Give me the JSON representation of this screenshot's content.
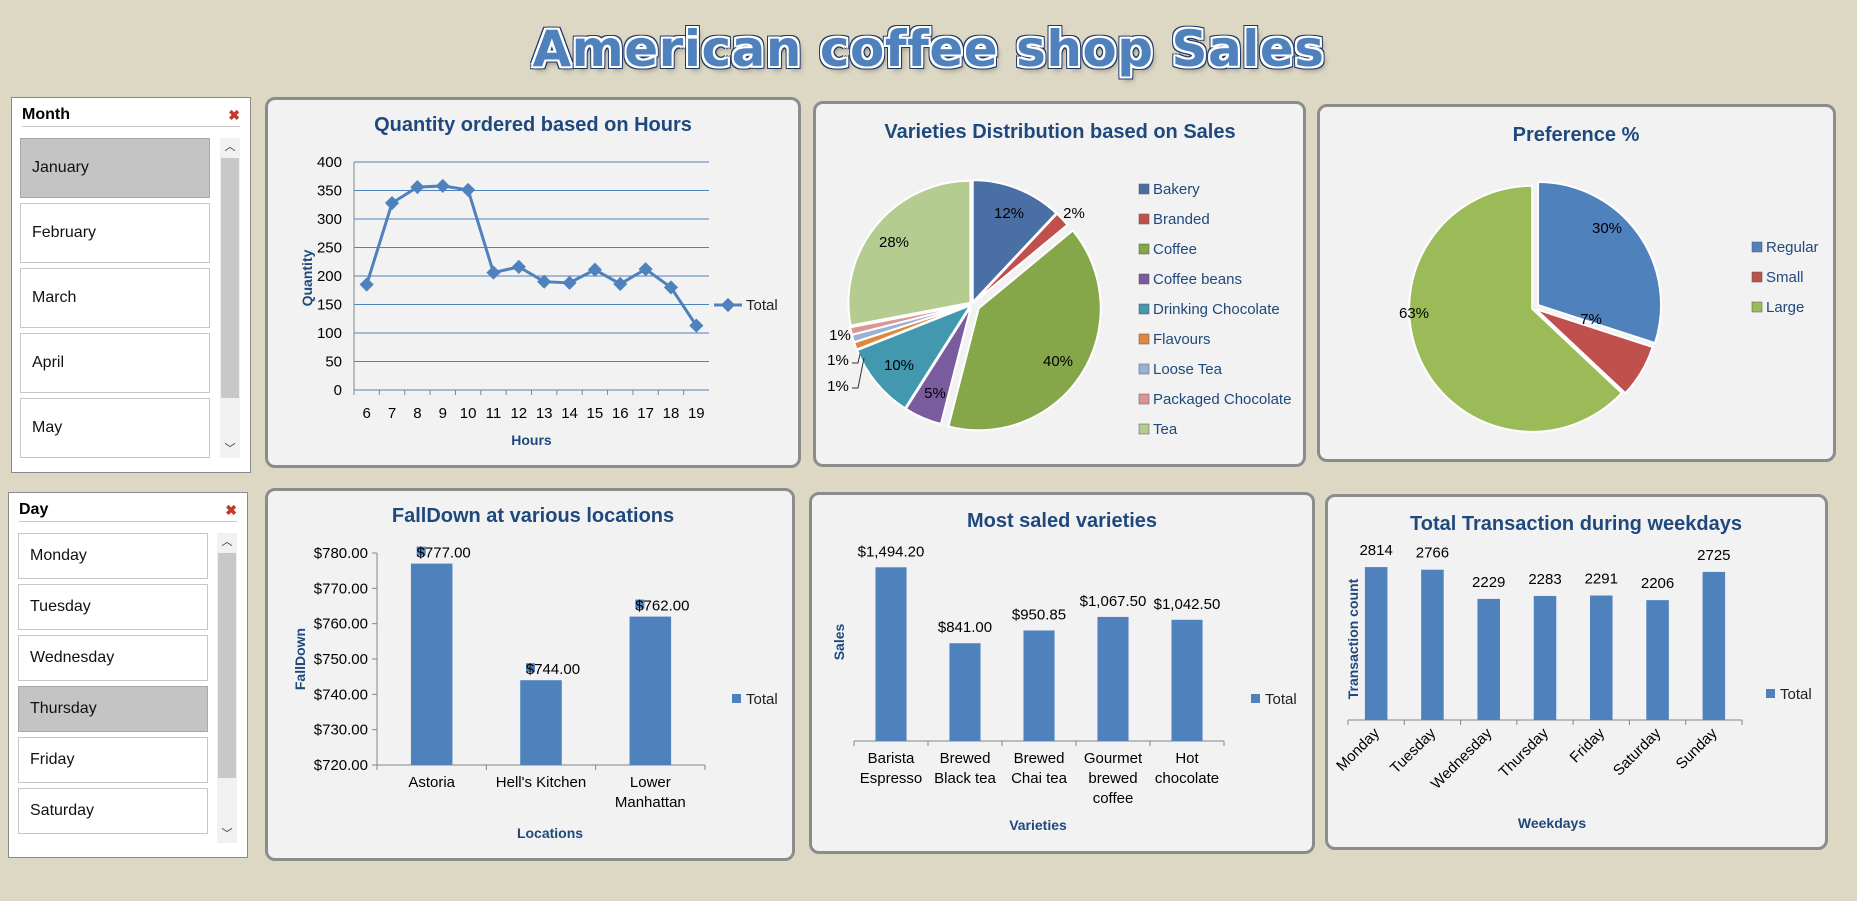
{
  "dashboard": {
    "title": "American coffee shop Sales"
  },
  "colors": {
    "accent": "#4f81bd",
    "title_text": "#1f497d",
    "panel_bg": "#f2f2f2",
    "page_bg": "#ddd8c4",
    "selected_item": "#c4c4c4"
  },
  "month_slicer": {
    "header": "Month",
    "clear_icon": "clear-filter-icon",
    "items": [
      {
        "label": "January",
        "selected": true
      },
      {
        "label": "February",
        "selected": false
      },
      {
        "label": "March",
        "selected": false
      },
      {
        "label": "April",
        "selected": false
      },
      {
        "label": "May",
        "selected": false
      }
    ]
  },
  "day_slicer": {
    "header": "Day",
    "clear_icon": "clear-filter-icon",
    "items": [
      {
        "label": "Monday",
        "selected": false
      },
      {
        "label": "Tuesday",
        "selected": false
      },
      {
        "label": "Wednesday",
        "selected": false
      },
      {
        "label": "Thursday",
        "selected": true
      },
      {
        "label": "Friday",
        "selected": false
      },
      {
        "label": "Saturday",
        "selected": false
      }
    ]
  },
  "charts": {
    "hours": {
      "title": "Quantity ordered based on Hours"
    },
    "varieties_pie": {
      "title": "Varieties Distribution based on Sales"
    },
    "preference": {
      "title": "Preference %"
    },
    "falldown": {
      "title": "FallDown at various locations"
    },
    "most_saled": {
      "title": "Most saled varieties"
    },
    "weekdays": {
      "title": "Total Transaction  during weekdays"
    }
  },
  "chart_data": [
    {
      "id": "hours",
      "type": "line",
      "title": "Quantity ordered based on Hours",
      "xlabel": "Hours",
      "ylabel": "Quantity",
      "x": [
        6,
        7,
        8,
        9,
        10,
        11,
        12,
        13,
        14,
        15,
        16,
        17,
        18,
        19
      ],
      "series": [
        {
          "name": "Total",
          "values": [
            185,
            328,
            356,
            358,
            351,
            206,
            216,
            190,
            188,
            211,
            186,
            212,
            180,
            113
          ]
        }
      ],
      "ylim": [
        0,
        400
      ],
      "yticks": [
        0,
        50,
        100,
        150,
        200,
        250,
        300,
        350,
        400
      ],
      "grid": true,
      "legend": "right"
    },
    {
      "id": "varieties_pie",
      "type": "pie",
      "title": "Varieties Distribution based on Sales",
      "categories": [
        "Bakery",
        "Branded",
        "Coffee",
        "Coffee beans",
        "Drinking Chocolate",
        "Flavours",
        "Loose Tea",
        "Packaged Chocolate",
        "Tea"
      ],
      "values": [
        12,
        2,
        40,
        5,
        10,
        1,
        1,
        1,
        28
      ],
      "labels": [
        "12%",
        "2%",
        "40%",
        "5%",
        "10%",
        "1%",
        "1%",
        "1%",
        "28%"
      ],
      "colors": [
        "#4a6fa5",
        "#c0504d",
        "#86a64a",
        "#7a5c9e",
        "#4198af",
        "#e0873c",
        "#9bb1d4",
        "#d99694",
        "#b5cc91"
      ],
      "legend": "right"
    },
    {
      "id": "preference",
      "type": "pie",
      "title": "Preference %",
      "categories": [
        "Regular",
        "Small",
        "Large"
      ],
      "values": [
        30,
        7,
        63
      ],
      "labels": [
        "30%",
        "7%",
        "63%"
      ],
      "colors": [
        "#4f81bd",
        "#c0504d",
        "#9bbb59"
      ],
      "legend": "right"
    },
    {
      "id": "falldown",
      "type": "bar",
      "title": "FallDown at various locations",
      "xlabel": "Locations",
      "ylabel": "FallDown",
      "categories": [
        [
          "Astoria"
        ],
        [
          "Hell's Kitchen"
        ],
        [
          "Lower",
          "Manhattan"
        ]
      ],
      "series": [
        {
          "name": "Total",
          "values": [
            777,
            744,
            762
          ]
        }
      ],
      "value_labels": [
        "$777.00",
        "$744.00",
        "$762.00"
      ],
      "ylim": [
        720,
        780
      ],
      "yticks": [
        "$720.00",
        "$730.00",
        "$740.00",
        "$750.00",
        "$760.00",
        "$770.00",
        "$780.00"
      ],
      "legend": "right"
    },
    {
      "id": "most_saled",
      "type": "bar",
      "title": "Most saled varieties",
      "xlabel": "Varieties",
      "ylabel": "Sales",
      "categories": [
        [
          "Barista",
          "Espresso"
        ],
        [
          "Brewed",
          "Black tea"
        ],
        [
          "Brewed",
          "Chai tea"
        ],
        [
          "Gourmet",
          "brewed",
          "coffee"
        ],
        [
          "Hot",
          "chocolate"
        ]
      ],
      "series": [
        {
          "name": "Total",
          "values": [
            1494.2,
            841,
            950.85,
            1067.5,
            1042.5
          ]
        }
      ],
      "value_labels": [
        "$1,494.20",
        "$841.00",
        "$950.85",
        "$1,067.50",
        "$1,042.50"
      ],
      "ylim": [
        0,
        1600
      ],
      "legend": "right"
    },
    {
      "id": "weekdays",
      "type": "bar",
      "title": "Total Transaction  during weekdays",
      "xlabel": "Weekdays",
      "ylabel": "Transaction count",
      "categories": [
        "Monday",
        "Tuesday",
        "Wednesday",
        "Thursday",
        "Friday",
        "Saturday",
        "Sunday"
      ],
      "series": [
        {
          "name": "Total",
          "values": [
            2814,
            2766,
            2229,
            2283,
            2291,
            2206,
            2725
          ]
        }
      ],
      "value_labels": [
        "2814",
        "2766",
        "2229",
        "2283",
        "2291",
        "2206",
        "2725"
      ],
      "ylim": [
        0,
        3000
      ],
      "legend": "right"
    }
  ]
}
